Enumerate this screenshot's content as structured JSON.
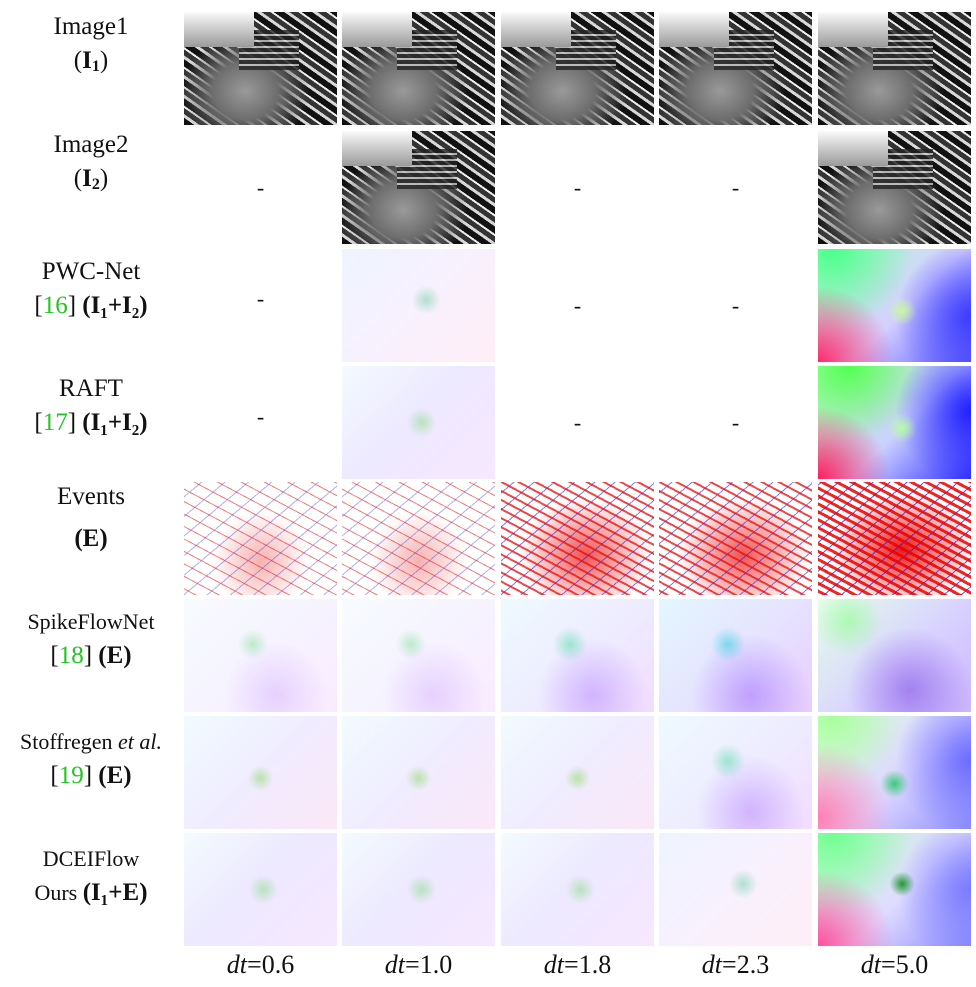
{
  "rows": [
    {
      "label_line1": "Image1",
      "label_line2_pre": "(",
      "label_line2_bold": "I",
      "label_line2_sub": "1",
      "label_line2_post": ")"
    },
    {
      "label_line1": "Image2",
      "label_line2_pre": "(",
      "label_line2_bold": "I",
      "label_line2_sub": "2",
      "label_line2_post": ")"
    },
    {
      "label_line1": "PWC-Net",
      "ref": "16",
      "ref_open": "[",
      "ref_close": "]",
      "inputs": "(I₁+I₂)"
    },
    {
      "label_line1": "RAFT",
      "ref": "17",
      "ref_open": "[",
      "ref_close": "]",
      "inputs": "(I₁+I₂)"
    },
    {
      "label_line1": "Events",
      "label_line2": "(E)"
    },
    {
      "label_line1": "SpikeFlowNet",
      "ref": "18",
      "ref_open": "[",
      "ref_close": "]",
      "inputs": "(E)"
    },
    {
      "label_line1": "Stoffregen",
      "label_line1_italic": "et al.",
      "ref": "19",
      "ref_open": "[",
      "ref_close": "]",
      "inputs": "(E)"
    },
    {
      "label_line1": "DCEIFlow",
      "label_line2_pre": "Ours ",
      "inputs": "(I₁+E)"
    }
  ],
  "dash": "-",
  "columns": [
    {
      "dt_var": "dt",
      "dt_val": "=0.6"
    },
    {
      "dt_var": "dt",
      "dt_val": "=1.0"
    },
    {
      "dt_var": "dt",
      "dt_val": "=1.8"
    },
    {
      "dt_var": "dt",
      "dt_val": "=2.3"
    },
    {
      "dt_var": "dt",
      "dt_val": "=5.0"
    }
  ]
}
